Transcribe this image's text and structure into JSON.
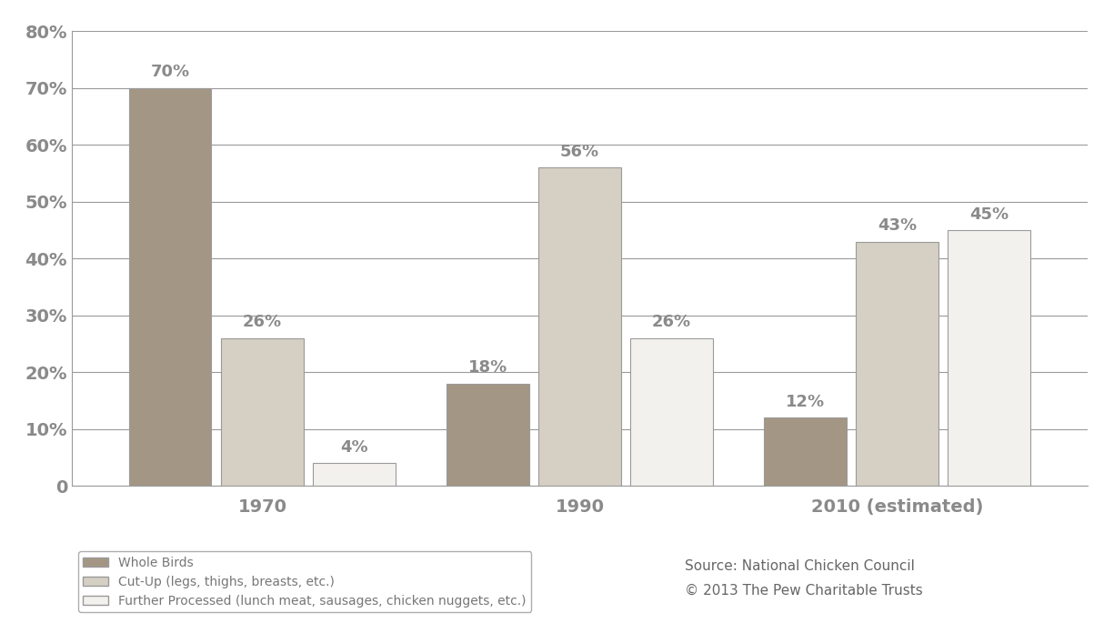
{
  "chart_data": {
    "type": "bar",
    "categories": [
      "1970",
      "1990",
      "2010 (estimated)"
    ],
    "series": [
      {
        "name": "Whole Birds",
        "color": "#a39684",
        "values": [
          70,
          18,
          12
        ],
        "value_labels": [
          "70%",
          "18%",
          "12%"
        ]
      },
      {
        "name": "Cut-Up (legs, thighs, breasts, etc.)",
        "color": "#d5cfc4",
        "values": [
          26,
          56,
          43
        ],
        "value_labels": [
          "26%",
          "56%",
          "43%"
        ]
      },
      {
        "name": "Further Processed (lunch meat, sausages, chicken nuggets, etc.)",
        "color": "#f3f1ed",
        "values": [
          4,
          26,
          45
        ],
        "value_labels": [
          "4%",
          "26%",
          "45%"
        ]
      }
    ],
    "ylim": [
      0,
      80
    ],
    "yticks": [
      0,
      {
        "value": 10,
        "label": "10%"
      },
      {
        "value": 20,
        "label": "20%"
      },
      {
        "value": 30,
        "label": "30%"
      },
      {
        "value": 40,
        "label": "40%"
      },
      {
        "value": 50,
        "label": "50%"
      },
      {
        "value": 60,
        "label": "60%"
      },
      {
        "value": 70,
        "label": "70%"
      },
      {
        "value": 80,
        "label": "80%"
      }
    ],
    "grid": true,
    "data_labels": true,
    "legend": "upper left",
    "annotations": [
      "Source: National Chicken Council",
      "© 2013 The Pew Charitable Trusts"
    ]
  }
}
